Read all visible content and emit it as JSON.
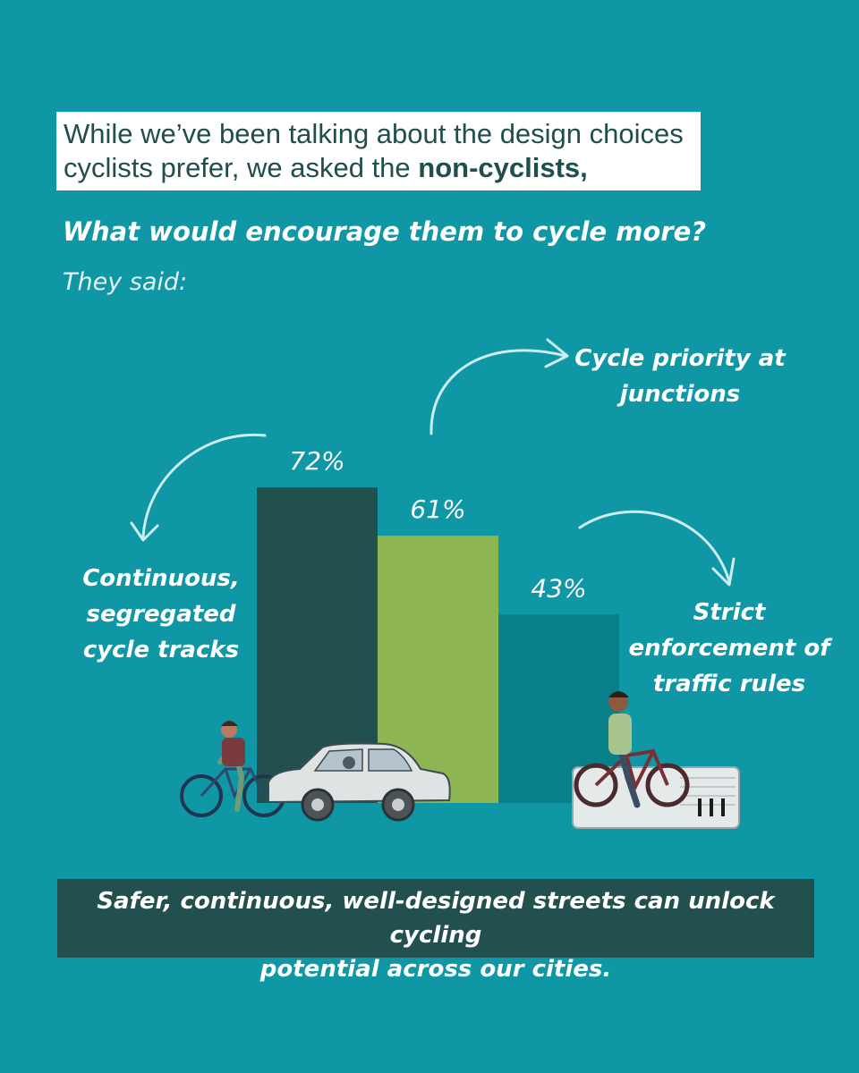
{
  "intro": {
    "line1": "While we’ve been talking about the design choices",
    "line2_prefix": "cyclists prefer, we asked the ",
    "line2_bold": "non-cyclists,"
  },
  "question": "What would encourage them to cycle more?",
  "subheading": "They said:",
  "chart_data": {
    "type": "bar",
    "categories": [
      "Continuous, segregated cycle tracks",
      "Cycle priority at junctions",
      "Strict enforcement of traffic rules"
    ],
    "values": [
      72,
      61,
      43
    ],
    "data_labels": [
      "72%",
      "61%",
      "43%"
    ],
    "colors": [
      "#22504f",
      "#8db554",
      "#097f8a"
    ],
    "ylim": [
      0,
      100
    ],
    "grid": false,
    "legend": "none"
  },
  "callouts": {
    "tracks": [
      "Continuous,",
      "segregated",
      "cycle tracks"
    ],
    "junctions": [
      "Cycle priority at",
      "junctions"
    ],
    "enforcement": [
      "Strict",
      "enforcement of",
      "traffic rules"
    ]
  },
  "footer": {
    "line1": "Safer, continuous, well-designed streets can unlock cycling",
    "line2": "potential across our cities."
  },
  "colors": {
    "background": "#0f97a5",
    "dark_teal": "#22504f",
    "green": "#8db554",
    "mid_teal": "#097f8a",
    "arrow": "#cdeef0"
  },
  "icons": [
    "cyclist-illustration",
    "car-illustration",
    "cyclist-on-crossing-illustration",
    "curved-arrow-icon"
  ]
}
